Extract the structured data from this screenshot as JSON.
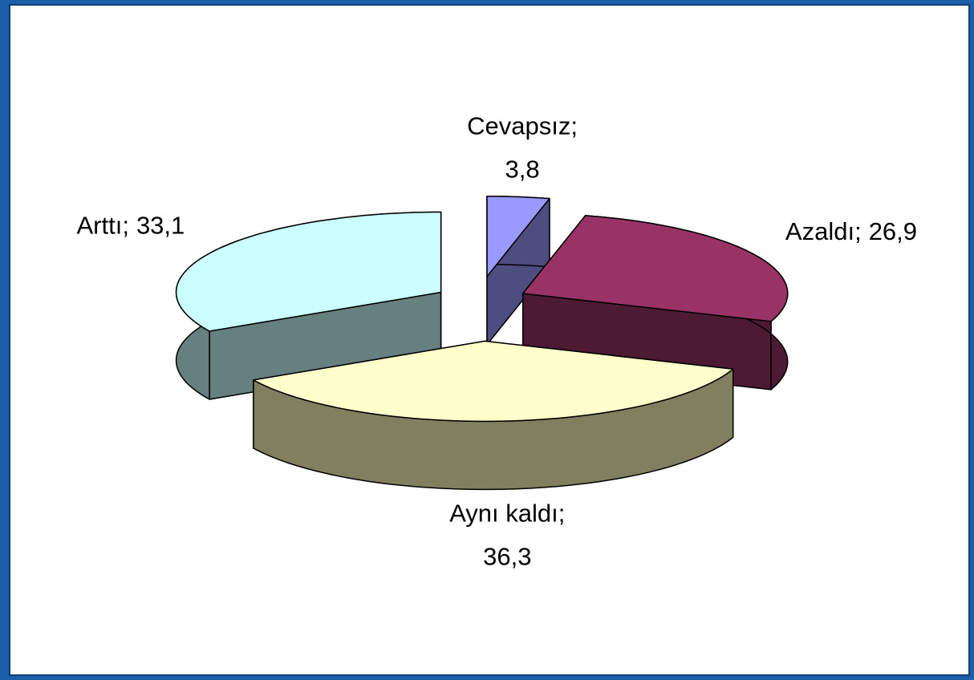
{
  "chart_data": {
    "type": "pie3d",
    "categories": [
      "Cevapsız;",
      "Azaldı;",
      "Aynı kaldı;",
      "Arttı;"
    ],
    "values": [
      3.8,
      26.9,
      36.3,
      33.1
    ],
    "value_labels": [
      "3,8",
      "26,9",
      "36,3",
      "33,1"
    ],
    "colors": [
      "#9999ff",
      "#993366",
      "#ffffcc",
      "#ccffff"
    ],
    "side_colors": [
      "#4d4d80",
      "#4d1a33",
      "#808060",
      "#668080"
    ]
  }
}
